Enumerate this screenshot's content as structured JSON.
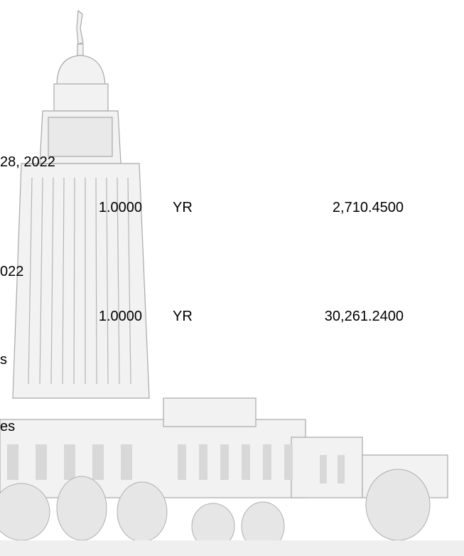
{
  "items": [
    {
      "date": "28, 2022",
      "quantity": "1.0000",
      "unit": "YR",
      "amount": "2,710.4500"
    },
    {
      "date": "022",
      "quantity": "1.0000",
      "unit": "YR",
      "amount": "30,261.2400"
    }
  ],
  "notes": [
    "s",
    "es"
  ]
}
